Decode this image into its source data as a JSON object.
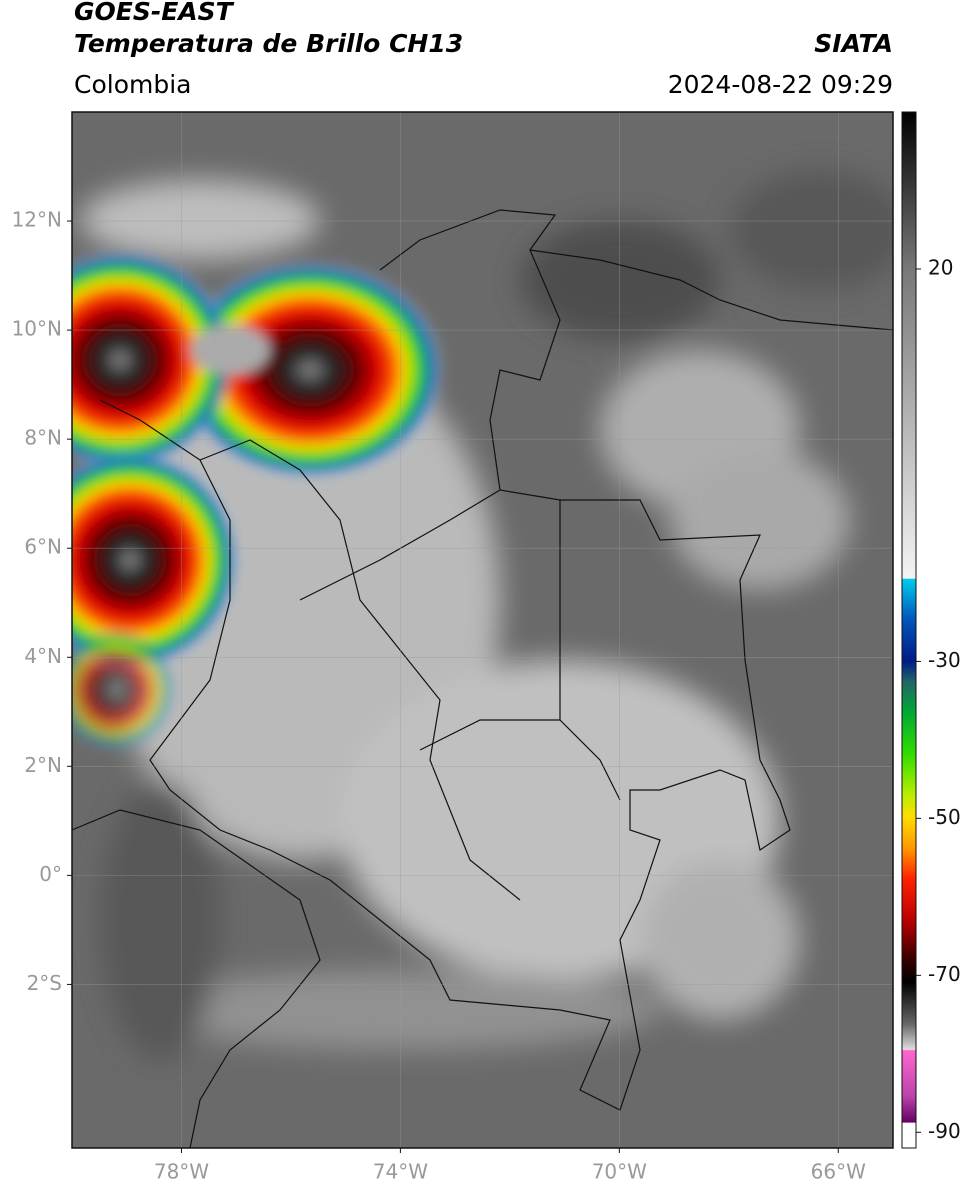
{
  "header": {
    "title": "GOES-EAST",
    "subtitle": "Temperatura de Brillo CH13",
    "source": "SIATA",
    "region": "Colombia",
    "datetime": "2024-08-22 09:29"
  },
  "map": {
    "lon_range": [
      -80,
      -65
    ],
    "lat_range": [
      -5,
      14
    ],
    "grid": true,
    "lon_ticks": [
      {
        "value": -78,
        "label": "78°W"
      },
      {
        "value": -74,
        "label": "74°W"
      },
      {
        "value": -70,
        "label": "70°W"
      },
      {
        "value": -66,
        "label": "66°W"
      }
    ],
    "lat_ticks": [
      {
        "value": 12,
        "label": "12°N"
      },
      {
        "value": 10,
        "label": "10°N"
      },
      {
        "value": 8,
        "label": "8°N"
      },
      {
        "value": 6,
        "label": "6°N"
      },
      {
        "value": 4,
        "label": "4°N"
      },
      {
        "value": 2,
        "label": "2°N"
      },
      {
        "value": 0,
        "label": "0°"
      },
      {
        "value": -2,
        "label": "2°S"
      }
    ]
  },
  "colorbar": {
    "range": [
      -92,
      40
    ],
    "ticks": [
      20,
      -30,
      -50,
      -70,
      -90
    ]
  }
}
